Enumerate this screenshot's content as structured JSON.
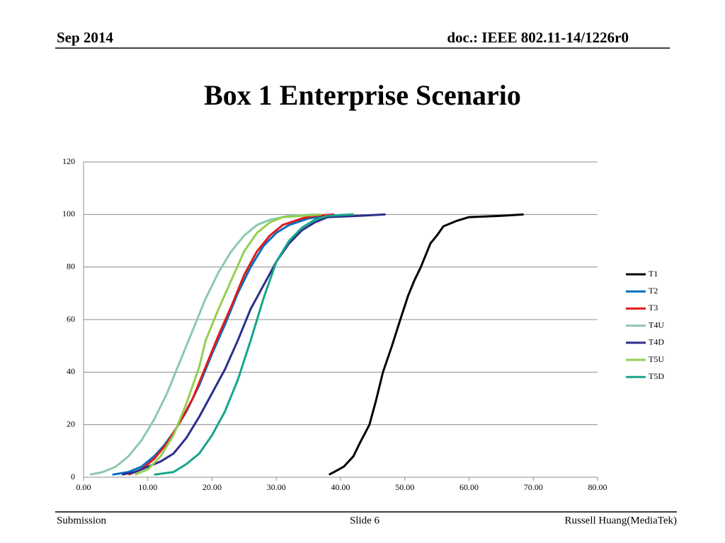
{
  "header": {
    "date": "Sep 2014",
    "doc": "doc.: IEEE 802.11-14/1226r0"
  },
  "title": "Box 1 Enterprise Scenario",
  "chart_data": {
    "type": "line",
    "xlim": [
      0,
      80
    ],
    "xticks": [
      {
        "value": 0,
        "label": "0.00"
      },
      {
        "value": 10,
        "label": "10.00"
      },
      {
        "value": 20,
        "label": "20.00"
      },
      {
        "value": 30,
        "label": "30.00"
      },
      {
        "value": 40,
        "label": "40.00"
      },
      {
        "value": 50,
        "label": "50.00"
      },
      {
        "value": 60,
        "label": "60.00"
      },
      {
        "value": 70,
        "label": "70.00"
      },
      {
        "value": 80,
        "label": "80.00"
      }
    ],
    "ylim": [
      0,
      120
    ],
    "yticks": [
      0,
      20,
      40,
      60,
      80,
      100,
      120
    ],
    "grid": true,
    "legend": "right",
    "series": [
      {
        "name": "T1",
        "color": "#000000",
        "x": [
          38.2,
          39,
          40.5,
          42,
          43,
          44.5,
          45.5,
          46.6,
          48,
          49.3,
          50.5,
          51.5,
          52.5,
          54,
          55,
          56,
          58,
          60,
          65,
          68.5
        ],
        "values": [
          1,
          2,
          4,
          8,
          13,
          20,
          29,
          40,
          50,
          60,
          69,
          75,
          80,
          89,
          92,
          95.5,
          97.5,
          99,
          99.5,
          100
        ]
      },
      {
        "name": "T2",
        "color": "#0070c0",
        "x": [
          4.5,
          7,
          9,
          11,
          12.5,
          14,
          16,
          18,
          20,
          22,
          24,
          26,
          28,
          30,
          32,
          35,
          38,
          42
        ],
        "values": [
          1,
          2,
          4,
          8,
          12,
          17,
          25,
          35,
          47,
          58,
          70,
          80,
          88,
          93,
          96,
          98.5,
          99.5,
          100
        ]
      },
      {
        "name": "T3",
        "color": "#e31a1c",
        "x": [
          7,
          9,
          11,
          13,
          15,
          17,
          19,
          21,
          23,
          25,
          27,
          29,
          31,
          34,
          36,
          39
        ],
        "values": [
          1,
          3,
          7,
          13,
          21,
          30,
          42,
          54,
          65,
          77,
          86,
          92,
          96,
          98.5,
          99.5,
          100
        ]
      },
      {
        "name": "T4U",
        "color": "#8cc9ad",
        "x": [
          1,
          3,
          5,
          7,
          9,
          11,
          13,
          15,
          17,
          19,
          21,
          23,
          25,
          27,
          29,
          32,
          36
        ],
        "values": [
          1,
          2,
          4,
          8,
          14,
          22,
          32,
          44,
          56,
          68,
          78,
          86,
          92,
          96,
          98,
          99.5,
          100
        ]
      },
      {
        "name": "T4D",
        "color": "#2b2f8c",
        "x": [
          6,
          8,
          10,
          12,
          14,
          16,
          18,
          20,
          22,
          24,
          26,
          28,
          30,
          32,
          34,
          36,
          38,
          43,
          47
        ],
        "values": [
          1,
          2,
          4,
          6,
          9,
          15,
          23,
          32,
          41,
          52,
          64,
          73,
          82,
          89,
          94,
          97,
          99,
          99.5,
          100
        ]
      },
      {
        "name": "T5U",
        "color": "#92d050",
        "x": [
          8,
          10,
          12,
          14,
          16,
          18,
          19,
          21,
          23,
          25,
          27,
          29,
          31,
          34,
          37
        ],
        "values": [
          1,
          3,
          8,
          16,
          28,
          42,
          52,
          64,
          75,
          86,
          93,
          97,
          99,
          99.5,
          100
        ]
      },
      {
        "name": "T5D",
        "color": "#17a589",
        "x": [
          11,
          14,
          16,
          18,
          20,
          22,
          24,
          26,
          28,
          30,
          32,
          34,
          36,
          38,
          42
        ],
        "values": [
          1,
          2,
          5,
          9,
          16,
          25,
          37,
          52,
          68,
          82,
          90,
          95,
          98,
          99.5,
          100
        ]
      }
    ]
  },
  "footer": {
    "left": "Submission",
    "center": "Slide 6",
    "right": "Russell Huang(MediaTek)"
  }
}
